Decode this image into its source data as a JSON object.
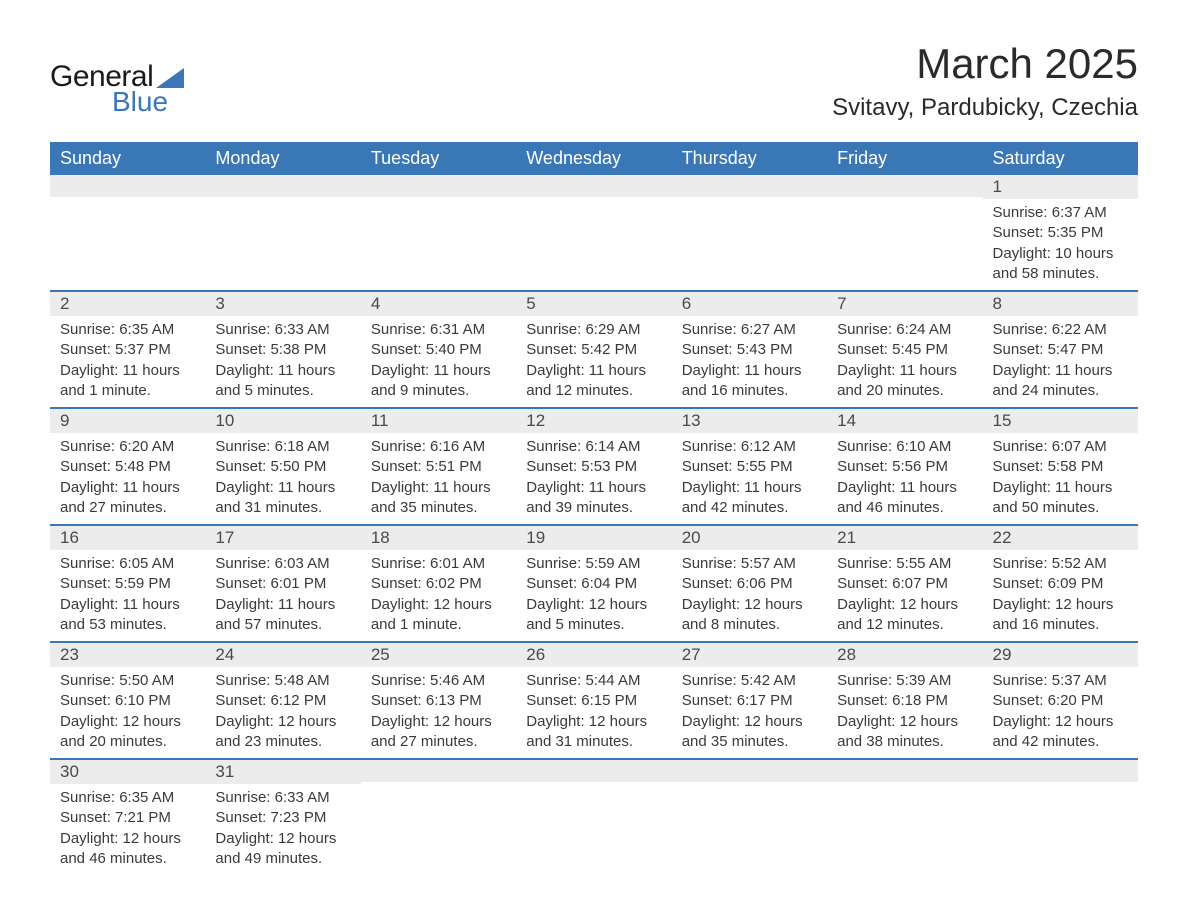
{
  "brand": {
    "word1": "General",
    "word2": "Blue"
  },
  "title": "March 2025",
  "location": "Svitavy, Pardubicky, Czechia",
  "colors": {
    "header_bg": "#3a77b7",
    "header_text": "#ffffff",
    "daynum_bg": "#ececec",
    "row_border": "#3a77b7",
    "body_text": "#3a3a3a",
    "title_text": "#2a2a2a",
    "page_bg": "#ffffff"
  },
  "typography": {
    "title_fontsize": 42,
    "location_fontsize": 24,
    "dayheader_fontsize": 18,
    "daynum_fontsize": 17,
    "body_fontsize": 15
  },
  "layout": {
    "columns": 7,
    "rows": 6,
    "first_day_column_index": 6
  },
  "dayHeaders": [
    "Sunday",
    "Monday",
    "Tuesday",
    "Wednesday",
    "Thursday",
    "Friday",
    "Saturday"
  ],
  "weeks": [
    [
      {
        "blank": true
      },
      {
        "blank": true
      },
      {
        "blank": true
      },
      {
        "blank": true
      },
      {
        "blank": true
      },
      {
        "blank": true
      },
      {
        "n": "1",
        "sunrise": "Sunrise: 6:37 AM",
        "sunset": "Sunset: 5:35 PM",
        "d1": "Daylight: 10 hours",
        "d2": "and 58 minutes."
      }
    ],
    [
      {
        "n": "2",
        "sunrise": "Sunrise: 6:35 AM",
        "sunset": "Sunset: 5:37 PM",
        "d1": "Daylight: 11 hours",
        "d2": "and 1 minute."
      },
      {
        "n": "3",
        "sunrise": "Sunrise: 6:33 AM",
        "sunset": "Sunset: 5:38 PM",
        "d1": "Daylight: 11 hours",
        "d2": "and 5 minutes."
      },
      {
        "n": "4",
        "sunrise": "Sunrise: 6:31 AM",
        "sunset": "Sunset: 5:40 PM",
        "d1": "Daylight: 11 hours",
        "d2": "and 9 minutes."
      },
      {
        "n": "5",
        "sunrise": "Sunrise: 6:29 AM",
        "sunset": "Sunset: 5:42 PM",
        "d1": "Daylight: 11 hours",
        "d2": "and 12 minutes."
      },
      {
        "n": "6",
        "sunrise": "Sunrise: 6:27 AM",
        "sunset": "Sunset: 5:43 PM",
        "d1": "Daylight: 11 hours",
        "d2": "and 16 minutes."
      },
      {
        "n": "7",
        "sunrise": "Sunrise: 6:24 AM",
        "sunset": "Sunset: 5:45 PM",
        "d1": "Daylight: 11 hours",
        "d2": "and 20 minutes."
      },
      {
        "n": "8",
        "sunrise": "Sunrise: 6:22 AM",
        "sunset": "Sunset: 5:47 PM",
        "d1": "Daylight: 11 hours",
        "d2": "and 24 minutes."
      }
    ],
    [
      {
        "n": "9",
        "sunrise": "Sunrise: 6:20 AM",
        "sunset": "Sunset: 5:48 PM",
        "d1": "Daylight: 11 hours",
        "d2": "and 27 minutes."
      },
      {
        "n": "10",
        "sunrise": "Sunrise: 6:18 AM",
        "sunset": "Sunset: 5:50 PM",
        "d1": "Daylight: 11 hours",
        "d2": "and 31 minutes."
      },
      {
        "n": "11",
        "sunrise": "Sunrise: 6:16 AM",
        "sunset": "Sunset: 5:51 PM",
        "d1": "Daylight: 11 hours",
        "d2": "and 35 minutes."
      },
      {
        "n": "12",
        "sunrise": "Sunrise: 6:14 AM",
        "sunset": "Sunset: 5:53 PM",
        "d1": "Daylight: 11 hours",
        "d2": "and 39 minutes."
      },
      {
        "n": "13",
        "sunrise": "Sunrise: 6:12 AM",
        "sunset": "Sunset: 5:55 PM",
        "d1": "Daylight: 11 hours",
        "d2": "and 42 minutes."
      },
      {
        "n": "14",
        "sunrise": "Sunrise: 6:10 AM",
        "sunset": "Sunset: 5:56 PM",
        "d1": "Daylight: 11 hours",
        "d2": "and 46 minutes."
      },
      {
        "n": "15",
        "sunrise": "Sunrise: 6:07 AM",
        "sunset": "Sunset: 5:58 PM",
        "d1": "Daylight: 11 hours",
        "d2": "and 50 minutes."
      }
    ],
    [
      {
        "n": "16",
        "sunrise": "Sunrise: 6:05 AM",
        "sunset": "Sunset: 5:59 PM",
        "d1": "Daylight: 11 hours",
        "d2": "and 53 minutes."
      },
      {
        "n": "17",
        "sunrise": "Sunrise: 6:03 AM",
        "sunset": "Sunset: 6:01 PM",
        "d1": "Daylight: 11 hours",
        "d2": "and 57 minutes."
      },
      {
        "n": "18",
        "sunrise": "Sunrise: 6:01 AM",
        "sunset": "Sunset: 6:02 PM",
        "d1": "Daylight: 12 hours",
        "d2": "and 1 minute."
      },
      {
        "n": "19",
        "sunrise": "Sunrise: 5:59 AM",
        "sunset": "Sunset: 6:04 PM",
        "d1": "Daylight: 12 hours",
        "d2": "and 5 minutes."
      },
      {
        "n": "20",
        "sunrise": "Sunrise: 5:57 AM",
        "sunset": "Sunset: 6:06 PM",
        "d1": "Daylight: 12 hours",
        "d2": "and 8 minutes."
      },
      {
        "n": "21",
        "sunrise": "Sunrise: 5:55 AM",
        "sunset": "Sunset: 6:07 PM",
        "d1": "Daylight: 12 hours",
        "d2": "and 12 minutes."
      },
      {
        "n": "22",
        "sunrise": "Sunrise: 5:52 AM",
        "sunset": "Sunset: 6:09 PM",
        "d1": "Daylight: 12 hours",
        "d2": "and 16 minutes."
      }
    ],
    [
      {
        "n": "23",
        "sunrise": "Sunrise: 5:50 AM",
        "sunset": "Sunset: 6:10 PM",
        "d1": "Daylight: 12 hours",
        "d2": "and 20 minutes."
      },
      {
        "n": "24",
        "sunrise": "Sunrise: 5:48 AM",
        "sunset": "Sunset: 6:12 PM",
        "d1": "Daylight: 12 hours",
        "d2": "and 23 minutes."
      },
      {
        "n": "25",
        "sunrise": "Sunrise: 5:46 AM",
        "sunset": "Sunset: 6:13 PM",
        "d1": "Daylight: 12 hours",
        "d2": "and 27 minutes."
      },
      {
        "n": "26",
        "sunrise": "Sunrise: 5:44 AM",
        "sunset": "Sunset: 6:15 PM",
        "d1": "Daylight: 12 hours",
        "d2": "and 31 minutes."
      },
      {
        "n": "27",
        "sunrise": "Sunrise: 5:42 AM",
        "sunset": "Sunset: 6:17 PM",
        "d1": "Daylight: 12 hours",
        "d2": "and 35 minutes."
      },
      {
        "n": "28",
        "sunrise": "Sunrise: 5:39 AM",
        "sunset": "Sunset: 6:18 PM",
        "d1": "Daylight: 12 hours",
        "d2": "and 38 minutes."
      },
      {
        "n": "29",
        "sunrise": "Sunrise: 5:37 AM",
        "sunset": "Sunset: 6:20 PM",
        "d1": "Daylight: 12 hours",
        "d2": "and 42 minutes."
      }
    ],
    [
      {
        "n": "30",
        "sunrise": "Sunrise: 6:35 AM",
        "sunset": "Sunset: 7:21 PM",
        "d1": "Daylight: 12 hours",
        "d2": "and 46 minutes."
      },
      {
        "n": "31",
        "sunrise": "Sunrise: 6:33 AM",
        "sunset": "Sunset: 7:23 PM",
        "d1": "Daylight: 12 hours",
        "d2": "and 49 minutes."
      },
      {
        "blank": true
      },
      {
        "blank": true
      },
      {
        "blank": true
      },
      {
        "blank": true
      },
      {
        "blank": true
      }
    ]
  ]
}
